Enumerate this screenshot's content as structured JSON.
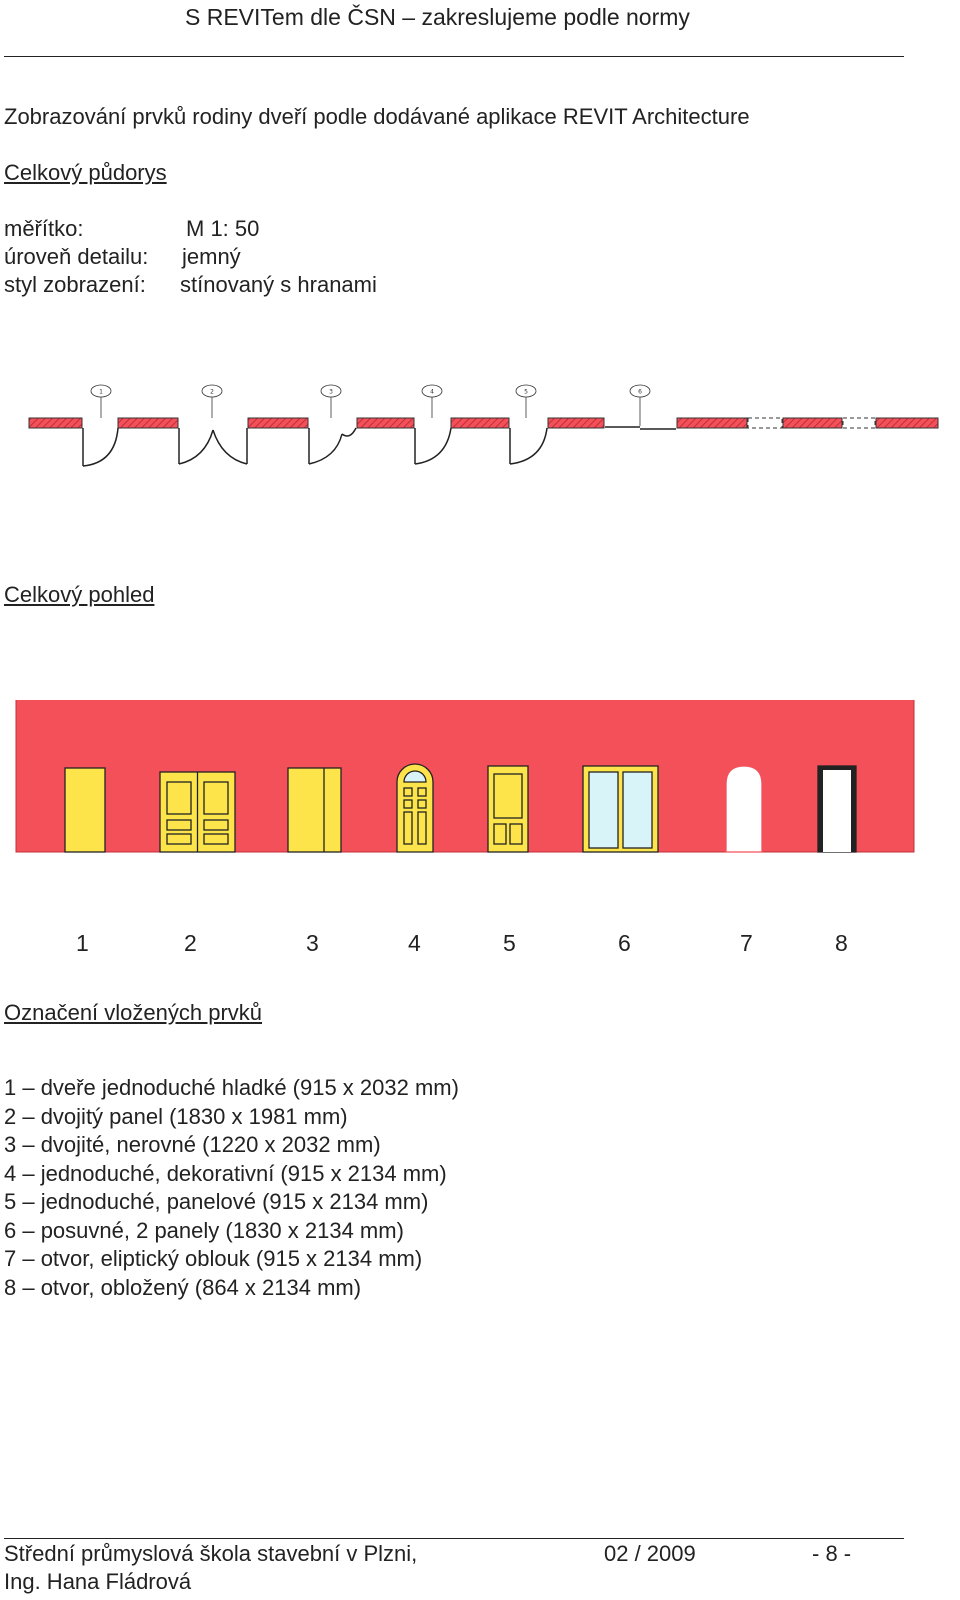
{
  "header": {
    "title": "S REVITem dle ČSN – zakreslujeme podle normy"
  },
  "intro": "Zobrazování prvků rodiny dveří podle dodávané aplikace REVIT Architecture",
  "plan_section": {
    "heading": "Celkový půdorys",
    "params": [
      {
        "label": "měřítko:",
        "value": "M 1: 50"
      },
      {
        "label": "úroveň detailu:",
        "value": "jemný"
      },
      {
        "label": "styl zobrazení:",
        "value": "stínovaný s hranami"
      }
    ],
    "tags": [
      "1",
      "2",
      "3",
      "4",
      "5",
      "6"
    ]
  },
  "elevation_section": {
    "heading": "Celkový pohled",
    "numbers": [
      "1",
      "2",
      "3",
      "4",
      "5",
      "6",
      "7",
      "8"
    ],
    "colors": {
      "wall": "#f4505a",
      "door": "#fce44a",
      "glass": "#d8f4f8",
      "opening": "#ffffff",
      "hatch": "#e04848"
    }
  },
  "legend": {
    "heading": "Označení vložených prvků",
    "items": [
      "1 – dveře jednoduché hladké (915 x 2032 mm)",
      "2 – dvojitý panel (1830 x 1981 mm)",
      "3 – dvojité, nerovné (1220 x 2032 mm)",
      "4 – jednoduché, dekorativní (915 x 2134 mm)",
      "5 – jednoduché, panelové (915 x 2134 mm)",
      "6 – posuvné, 2 panely (1830 x 2134 mm)",
      "7 – otvor, eliptický oblouk (915 x 2134 mm)",
      "8 – otvor, obložený (864 x 2134 mm)"
    ]
  },
  "footer": {
    "school": "Střední průmyslová škola stavební v Plzni,",
    "date": "02 / 2009",
    "page": "- 8 -",
    "author": "Ing. Hana Fládrová"
  }
}
